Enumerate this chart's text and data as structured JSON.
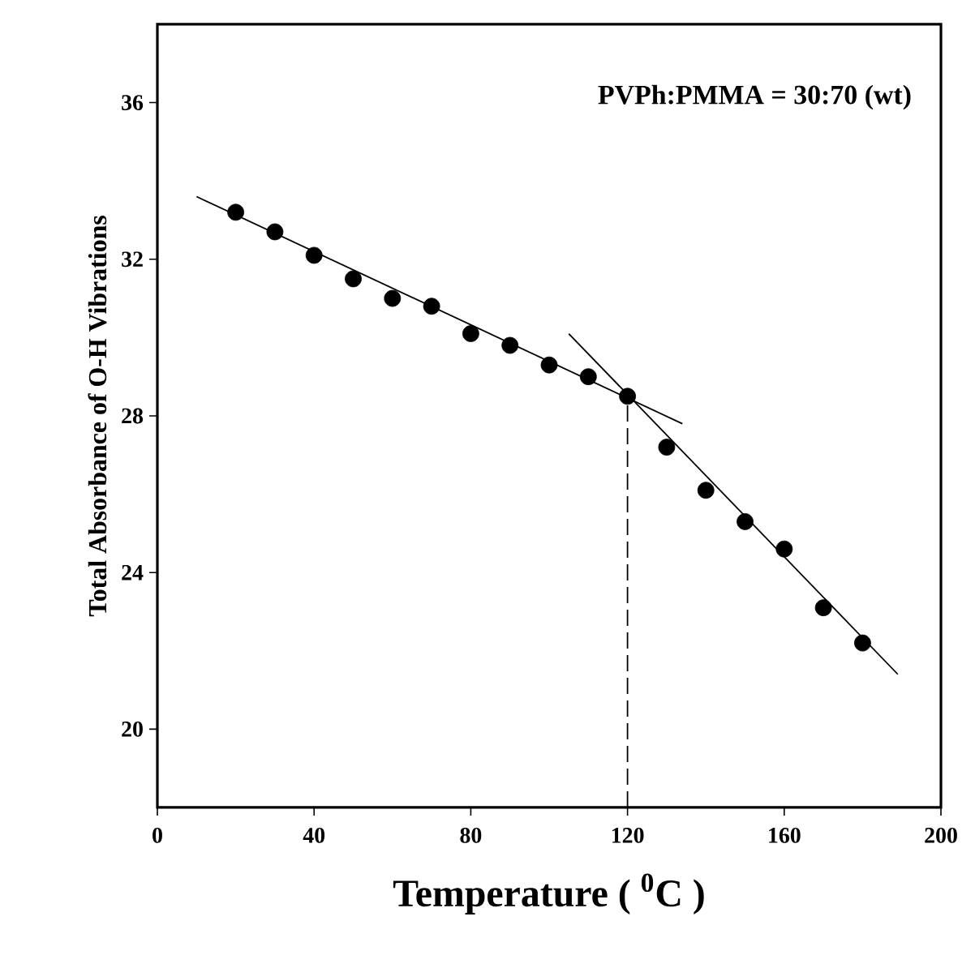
{
  "chart_data": {
    "type": "scatter",
    "xlabel": "Temperature ( $^{0}$C )",
    "ylabel": "Total Absorbance of O-H Vibrations",
    "annotations": [
      "PVPh:PMMA = 30:70 (wt)"
    ],
    "xlim": [
      0,
      200
    ],
    "ylim": [
      18,
      38
    ],
    "xticks": [
      0,
      40,
      80,
      120,
      160,
      200
    ],
    "yticks": [
      20,
      24,
      28,
      32,
      36
    ],
    "grid": false,
    "marker": "circle",
    "series": [
      {
        "color": "#000000",
        "x": [
          20,
          30,
          40,
          50,
          60,
          70,
          80,
          90,
          100,
          110,
          120,
          130,
          140,
          150,
          160,
          170,
          180
        ],
        "values": [
          33.2,
          32.7,
          32.1,
          31.5,
          31.0,
          30.8,
          30.1,
          29.8,
          29.3,
          29.0,
          28.5,
          27.2,
          26.1,
          25.3,
          24.6,
          23.1,
          22.2
        ]
      },
      {
        "type": "line",
        "marker": "none",
        "line_style": "solid",
        "color": "#000000",
        "x": [
          10,
          134
        ],
        "values": [
          33.6,
          27.8
        ]
      },
      {
        "type": "line",
        "marker": "none",
        "line_style": "solid",
        "color": "#000000",
        "x": [
          105,
          189
        ],
        "values": [
          30.1,
          21.4
        ]
      },
      {
        "type": "line",
        "marker": "none",
        "line_style": "dashed",
        "color": "#000000",
        "x": [
          120,
          120
        ],
        "values": [
          18,
          28.5
        ]
      }
    ]
  }
}
